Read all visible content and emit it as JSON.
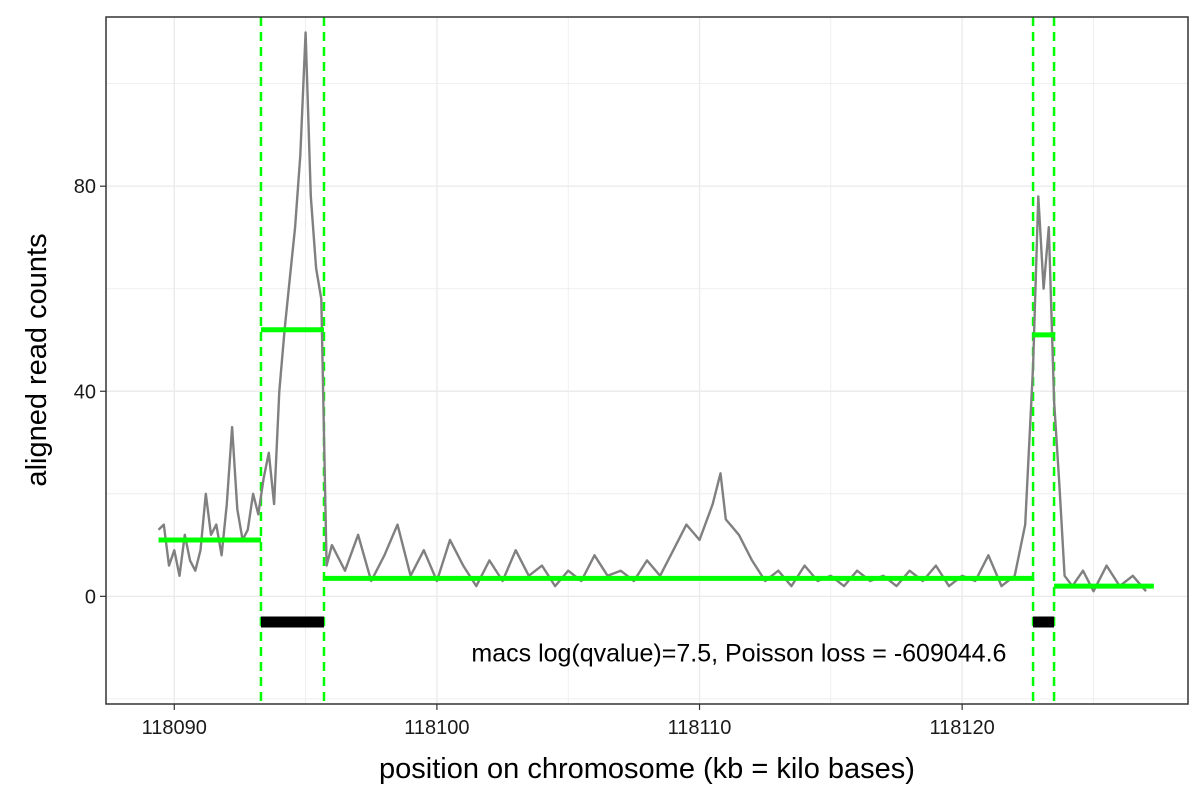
{
  "chart_data": {
    "type": "line",
    "title": "",
    "xlabel": "position on chromosome (kb = kilo bases)",
    "ylabel": "aligned read counts",
    "xlim": [
      118087.4,
      118128.6
    ],
    "ylim": [
      -21,
      113
    ],
    "x_ticks": [
      118090,
      118100,
      118110,
      118120
    ],
    "y_ticks": [
      0,
      40,
      80
    ],
    "grid": true,
    "legend": "none",
    "colors": {
      "coverage": "#808080",
      "segments": "#00ff00",
      "changepoints": "#00ff00",
      "peaks": "#000000",
      "grid": "#ebebeb",
      "panel_border": "#333333"
    },
    "coverage_profile": [
      [
        118089.4,
        13
      ],
      [
        118089.6,
        14
      ],
      [
        118089.8,
        6
      ],
      [
        118090.0,
        9
      ],
      [
        118090.2,
        4
      ],
      [
        118090.4,
        12
      ],
      [
        118090.6,
        7
      ],
      [
        118090.8,
        5
      ],
      [
        118091.0,
        9
      ],
      [
        118091.2,
        20
      ],
      [
        118091.4,
        12
      ],
      [
        118091.6,
        14
      ],
      [
        118091.8,
        8
      ],
      [
        118092.0,
        18
      ],
      [
        118092.2,
        33
      ],
      [
        118092.4,
        17
      ],
      [
        118092.6,
        11
      ],
      [
        118092.8,
        13
      ],
      [
        118093.0,
        20
      ],
      [
        118093.2,
        16
      ],
      [
        118093.4,
        23
      ],
      [
        118093.6,
        28
      ],
      [
        118093.8,
        18
      ],
      [
        118094.0,
        40
      ],
      [
        118094.2,
        52
      ],
      [
        118094.4,
        62
      ],
      [
        118094.6,
        72
      ],
      [
        118094.8,
        86
      ],
      [
        118095.0,
        110
      ],
      [
        118095.2,
        78
      ],
      [
        118095.4,
        64
      ],
      [
        118095.6,
        58
      ],
      [
        118095.8,
        6
      ],
      [
        118096.0,
        10
      ],
      [
        118096.5,
        5
      ],
      [
        118097.0,
        12
      ],
      [
        118097.5,
        3
      ],
      [
        118098.0,
        8
      ],
      [
        118098.5,
        14
      ],
      [
        118099.0,
        4
      ],
      [
        118099.5,
        9
      ],
      [
        118100.0,
        3
      ],
      [
        118100.5,
        11
      ],
      [
        118101.0,
        6
      ],
      [
        118101.5,
        2
      ],
      [
        118102.0,
        7
      ],
      [
        118102.5,
        3
      ],
      [
        118103.0,
        9
      ],
      [
        118103.5,
        4
      ],
      [
        118104.0,
        6
      ],
      [
        118104.5,
        2
      ],
      [
        118105.0,
        5
      ],
      [
        118105.5,
        3
      ],
      [
        118106.0,
        8
      ],
      [
        118106.5,
        4
      ],
      [
        118107.0,
        5
      ],
      [
        118107.5,
        3
      ],
      [
        118108.0,
        7
      ],
      [
        118108.5,
        4
      ],
      [
        118109.0,
        9
      ],
      [
        118109.5,
        14
      ],
      [
        118110.0,
        11
      ],
      [
        118110.5,
        18
      ],
      [
        118110.8,
        24
      ],
      [
        118111.0,
        15
      ],
      [
        118111.5,
        12
      ],
      [
        118112.0,
        7
      ],
      [
        118112.5,
        3
      ],
      [
        118113.0,
        5
      ],
      [
        118113.5,
        2
      ],
      [
        118114.0,
        6
      ],
      [
        118114.5,
        3
      ],
      [
        118115.0,
        4
      ],
      [
        118115.5,
        2
      ],
      [
        118116.0,
        5
      ],
      [
        118116.5,
        3
      ],
      [
        118117.0,
        4
      ],
      [
        118117.5,
        2
      ],
      [
        118118.0,
        5
      ],
      [
        118118.5,
        3
      ],
      [
        118119.0,
        6
      ],
      [
        118119.5,
        2
      ],
      [
        118120.0,
        4
      ],
      [
        118120.5,
        3
      ],
      [
        118121.0,
        8
      ],
      [
        118121.5,
        2
      ],
      [
        118122.0,
        4
      ],
      [
        118122.4,
        14
      ],
      [
        118122.7,
        45
      ],
      [
        118122.9,
        78
      ],
      [
        118123.1,
        60
      ],
      [
        118123.3,
        72
      ],
      [
        118123.5,
        38
      ],
      [
        118123.7,
        22
      ],
      [
        118123.9,
        4
      ],
      [
        118124.2,
        2
      ],
      [
        118124.6,
        5
      ],
      [
        118125.0,
        1
      ],
      [
        118125.5,
        6
      ],
      [
        118126.0,
        2
      ],
      [
        118126.5,
        4
      ],
      [
        118127.0,
        1
      ]
    ],
    "segments": [
      {
        "x_start": 118089.4,
        "x_end": 118093.3,
        "mean": 11
      },
      {
        "x_start": 118093.3,
        "x_end": 118095.7,
        "mean": 52
      },
      {
        "x_start": 118095.7,
        "x_end": 118122.7,
        "mean": 3.5
      },
      {
        "x_start": 118122.7,
        "x_end": 118123.5,
        "mean": 51
      },
      {
        "x_start": 118123.5,
        "x_end": 118127.3,
        "mean": 2
      }
    ],
    "changepoints": [
      118093.3,
      118095.7,
      118122.7,
      118123.5
    ],
    "peaks": [
      {
        "x_start": 118093.3,
        "x_end": 118095.7,
        "y": -5
      },
      {
        "x_start": 118122.7,
        "x_end": 118123.5,
        "y": -5
      }
    ],
    "annotation": {
      "text": "macs log(qvalue)=7.5, Poisson loss = -609044.6",
      "x": 118111.5,
      "y": -11
    }
  }
}
